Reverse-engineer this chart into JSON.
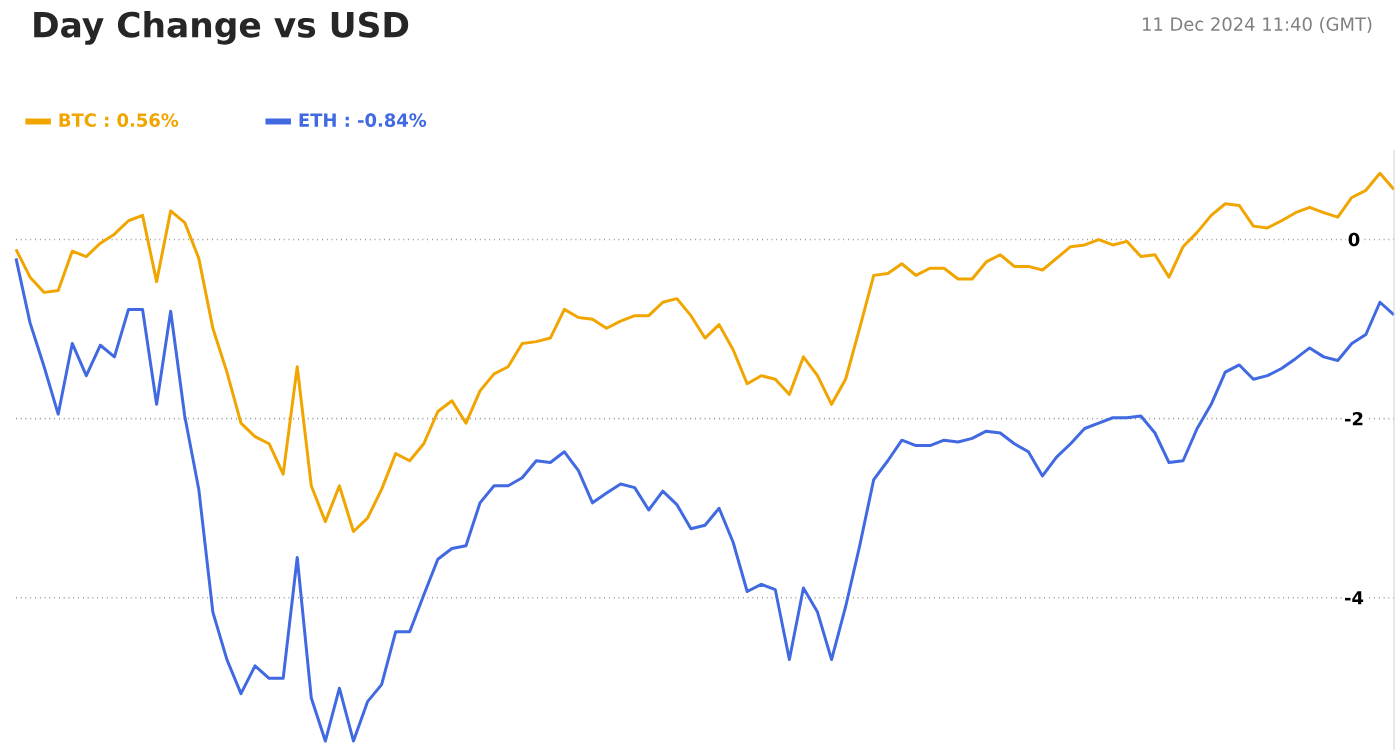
{
  "chart_data": {
    "type": "line",
    "title": "Day Change vs USD",
    "annotations": [
      "11 Dec 2024 11:40 (GMT)"
    ],
    "categories": [
      null,
      null,
      null,
      null,
      null,
      null,
      null,
      null,
      null,
      null,
      null,
      null,
      null,
      null,
      null,
      null,
      null,
      null,
      null,
      null,
      null,
      null,
      null,
      null,
      null,
      null,
      null,
      null,
      null,
      null,
      null,
      null,
      null,
      null,
      null,
      null,
      null,
      null,
      null,
      null,
      null,
      null,
      null,
      null,
      null,
      null,
      null,
      null,
      null,
      null,
      null,
      null,
      null,
      null,
      null,
      null,
      null,
      null,
      null,
      null,
      null,
      null,
      null,
      null,
      null,
      null,
      null,
      null,
      null,
      null,
      null,
      null,
      null,
      null,
      null,
      null,
      null,
      null,
      null,
      null,
      null,
      null,
      null,
      null,
      null,
      null,
      null,
      null,
      null,
      null,
      null,
      null,
      null,
      null,
      null,
      null,
      null,
      null,
      null
    ],
    "series": [
      {
        "name": "BTC : 0.56%",
        "color": "#f0a500",
        "values": [
          -0.11,
          -0.42,
          -0.59,
          -0.57,
          -0.13,
          -0.19,
          -0.04,
          0.06,
          0.21,
          0.27,
          -0.47,
          0.32,
          0.19,
          -0.21,
          -0.99,
          -1.48,
          -2.05,
          -2.2,
          -2.28,
          -2.62,
          -1.42,
          -2.75,
          -3.15,
          -2.75,
          -3.26,
          -3.11,
          -2.79,
          -2.39,
          -2.47,
          -2.28,
          -1.92,
          -1.8,
          -2.05,
          -1.69,
          -1.5,
          -1.42,
          -1.16,
          -1.14,
          -1.1,
          -0.78,
          -0.87,
          -0.89,
          -0.99,
          -0.91,
          -0.85,
          -0.85,
          -0.7,
          -0.66,
          -0.85,
          -1.1,
          -0.95,
          -1.23,
          -1.61,
          -1.52,
          -1.56,
          -1.73,
          -1.31,
          -1.52,
          -1.84,
          -1.56,
          -0.99,
          -0.4,
          -0.38,
          -0.27,
          -0.4,
          -0.32,
          -0.32,
          -0.44,
          -0.44,
          -0.25,
          -0.17,
          -0.3,
          -0.3,
          -0.34,
          -0.21,
          -0.08,
          -0.06,
          0,
          -0.06,
          -0.02,
          -0.19,
          -0.17,
          -0.42,
          -0.08,
          0.08,
          0.27,
          0.4,
          0.38,
          0.15,
          0.13,
          0.21,
          0.3,
          0.36,
          0.3,
          0.25,
          0.47,
          0.55,
          0.74,
          0.56
        ]
      },
      {
        "name": "ETH : -0.84%",
        "color": "#4169e1",
        "values": [
          -0.21,
          -0.93,
          -1.42,
          -1.95,
          -1.16,
          -1.52,
          -1.18,
          -1.31,
          -0.78,
          -0.78,
          -1.84,
          -0.8,
          -1.97,
          -2.79,
          -4.16,
          -4.69,
          -5.07,
          -4.76,
          -4.9,
          -4.9,
          -3.55,
          -5.12,
          -5.6,
          -5.01,
          -5.6,
          -5.16,
          -4.97,
          -4.38,
          -4.38,
          -3.97,
          -3.57,
          -3.45,
          -3.42,
          -2.94,
          -2.75,
          -2.75,
          -2.66,
          -2.47,
          -2.49,
          -2.37,
          -2.58,
          -2.94,
          -2.83,
          -2.73,
          -2.77,
          -3.02,
          -2.81,
          -2.96,
          -3.23,
          -3.19,
          -3.0,
          -3.38,
          -3.93,
          -3.85,
          -3.91,
          -4.69,
          -3.89,
          -4.16,
          -4.69,
          -4.1,
          -3.42,
          -2.68,
          -2.47,
          -2.24,
          -2.3,
          -2.3,
          -2.24,
          -2.26,
          -2.22,
          -2.14,
          -2.16,
          -2.28,
          -2.37,
          -2.64,
          -2.43,
          -2.28,
          -2.11,
          -2.05,
          -1.99,
          -1.99,
          -1.97,
          -2.16,
          -2.49,
          -2.47,
          -2.11,
          -1.84,
          -1.48,
          -1.4,
          -1.56,
          -1.52,
          -1.44,
          -1.33,
          -1.21,
          -1.31,
          -1.35,
          -1.16,
          -1.06,
          -0.7,
          -0.84
        ]
      }
    ],
    "ylim": [
      -5.7,
      1.0
    ],
    "yticks": [
      0,
      -2,
      -4
    ],
    "grid": "y",
    "legend": "top left",
    "marker": "none",
    "line_style": "solid"
  }
}
